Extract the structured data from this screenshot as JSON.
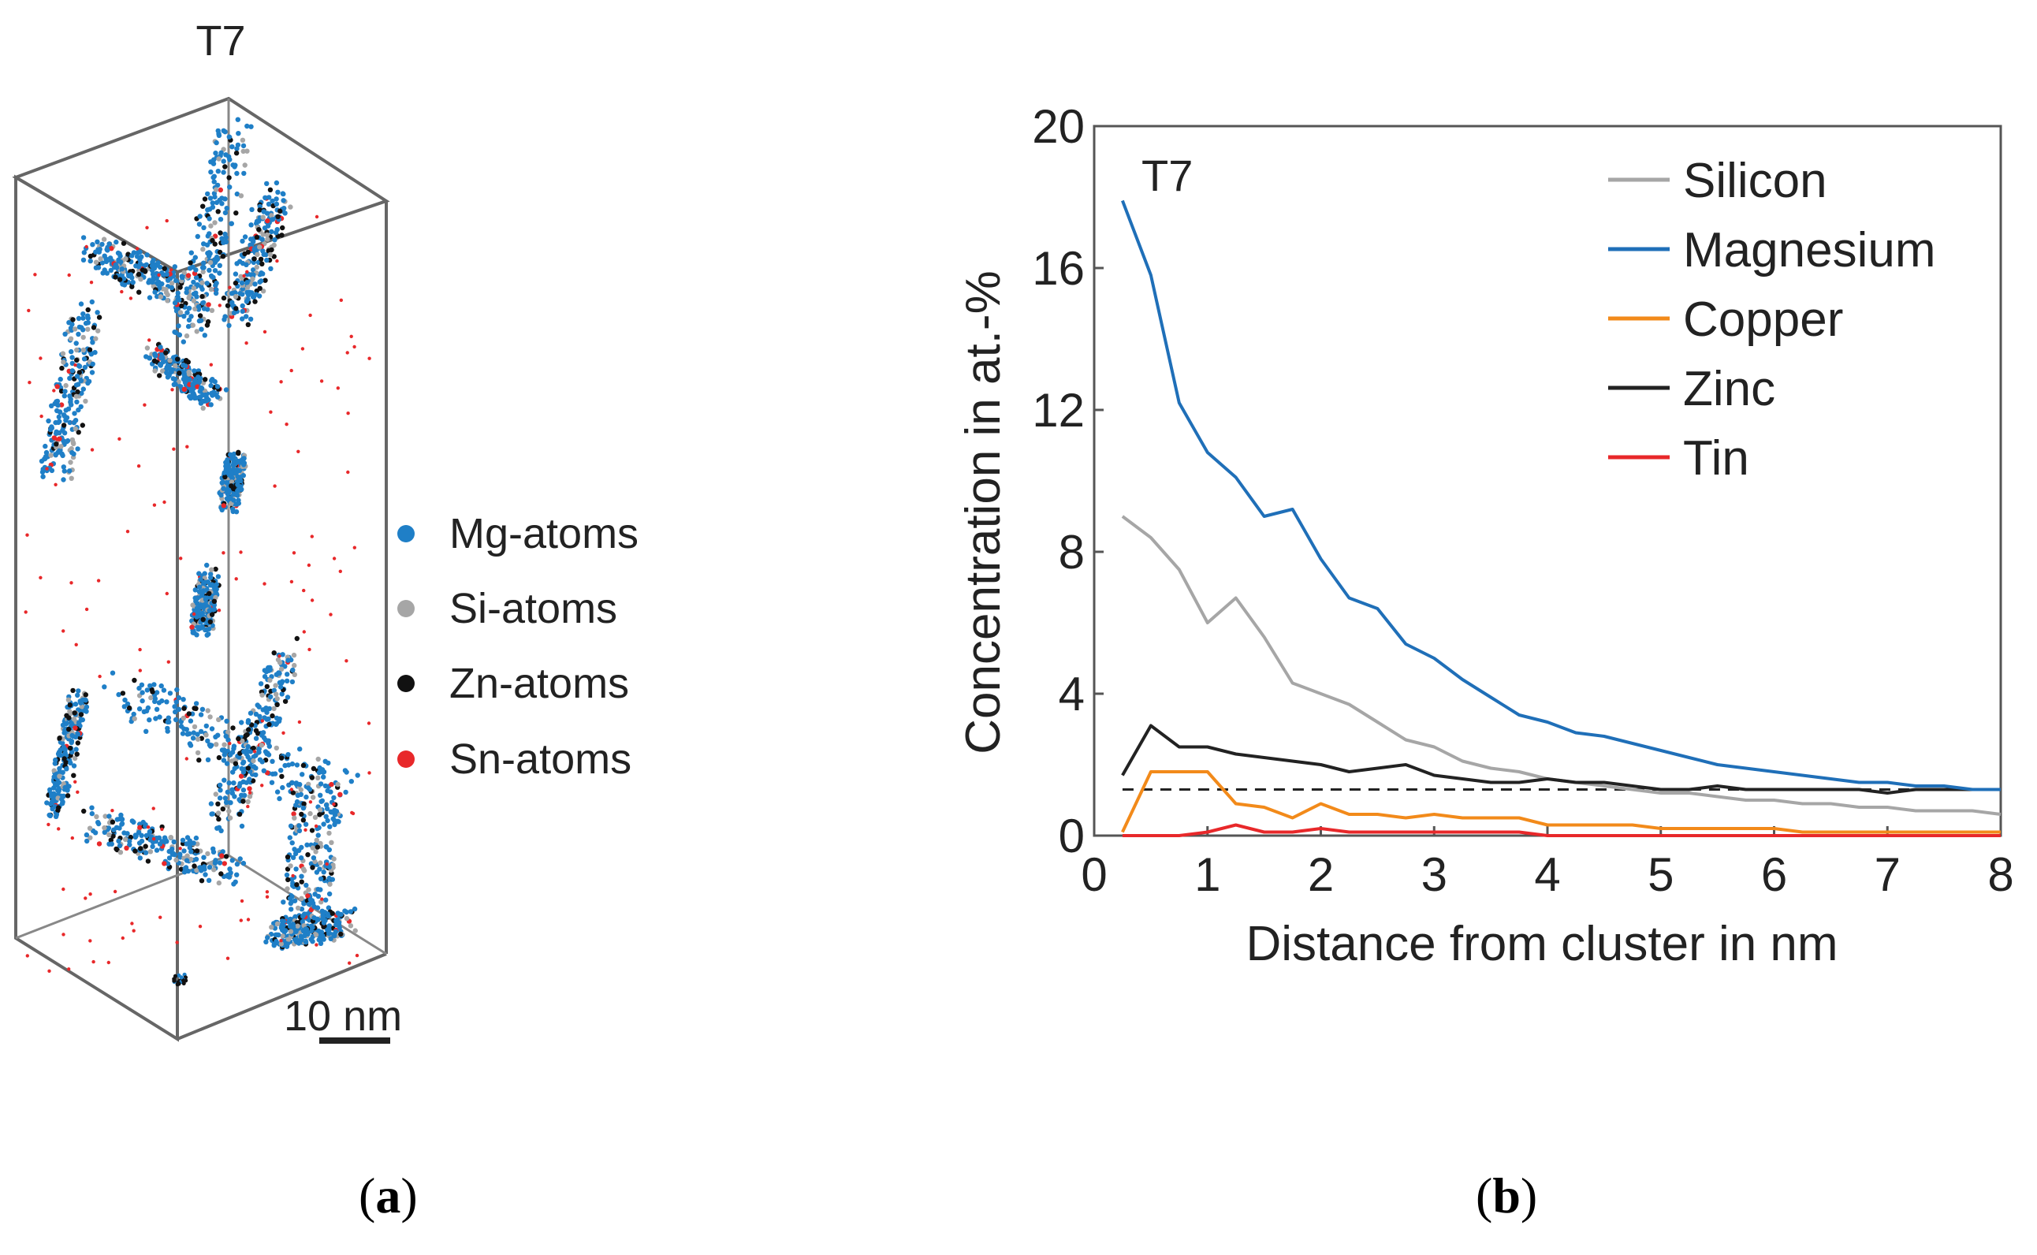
{
  "panel_a": {
    "title": "T7",
    "legend": [
      {
        "label": "Mg-atoms",
        "color": "#1f7fc7"
      },
      {
        "label": "Si-atoms",
        "color": "#a6a6a6"
      },
      {
        "label": "Zn-atoms",
        "color": "#111111"
      },
      {
        "label": "Sn-atoms",
        "color": "#e8282a"
      }
    ],
    "scale_bar": "10 nm",
    "caption_letter": "a"
  },
  "panel_b": {
    "caption_letter": "b"
  },
  "chart_data": {
    "type": "line",
    "annotation": "T7",
    "xlabel": "Distance from cluster in nm",
    "ylabel": "Concentration in at.-%",
    "xlim": [
      0,
      8
    ],
    "ylim": [
      0,
      20
    ],
    "xticks": [
      "0",
      "1",
      "2",
      "3",
      "4",
      "5",
      "6",
      "7",
      "8"
    ],
    "yticks": [
      "0",
      "4",
      "8",
      "12",
      "16",
      "20"
    ],
    "legend_position": "top-right",
    "x": [
      0.25,
      0.5,
      0.75,
      1.0,
      1.25,
      1.5,
      1.75,
      2.0,
      2.25,
      2.5,
      2.75,
      3.0,
      3.25,
      3.5,
      3.75,
      4.0,
      4.25,
      4.5,
      4.75,
      5.0,
      5.25,
      5.5,
      5.75,
      6.0,
      6.25,
      6.5,
      6.75,
      7.0,
      7.25,
      7.5,
      7.75,
      8.0
    ],
    "series": [
      {
        "name": "Silicon",
        "color": "#a6a6a6",
        "values": [
          9.0,
          8.4,
          7.5,
          6.0,
          6.7,
          5.6,
          4.3,
          4.0,
          3.7,
          3.2,
          2.7,
          2.5,
          2.1,
          1.9,
          1.8,
          1.6,
          1.5,
          1.4,
          1.3,
          1.2,
          1.2,
          1.1,
          1.0,
          1.0,
          0.9,
          0.9,
          0.8,
          0.8,
          0.7,
          0.7,
          0.7,
          0.6
        ]
      },
      {
        "name": "Magnesium",
        "color": "#1f6fb8",
        "values": [
          17.9,
          15.8,
          12.2,
          10.8,
          10.1,
          9.0,
          9.2,
          7.8,
          6.7,
          6.4,
          5.4,
          5.0,
          4.4,
          3.9,
          3.4,
          3.2,
          2.9,
          2.8,
          2.6,
          2.4,
          2.2,
          2.0,
          1.9,
          1.8,
          1.7,
          1.6,
          1.5,
          1.5,
          1.4,
          1.4,
          1.3,
          1.3
        ]
      },
      {
        "name": "Copper",
        "color": "#f28a1a",
        "values": [
          0.1,
          1.8,
          1.8,
          1.8,
          0.9,
          0.8,
          0.5,
          0.9,
          0.6,
          0.6,
          0.5,
          0.6,
          0.5,
          0.5,
          0.5,
          0.3,
          0.3,
          0.3,
          0.3,
          0.2,
          0.2,
          0.2,
          0.2,
          0.2,
          0.1,
          0.1,
          0.1,
          0.1,
          0.1,
          0.1,
          0.1,
          0.1
        ]
      },
      {
        "name": "Zinc",
        "color": "#222222",
        "values": [
          1.7,
          3.1,
          2.5,
          2.5,
          2.3,
          2.2,
          2.1,
          2.0,
          1.8,
          1.9,
          2.0,
          1.7,
          1.6,
          1.5,
          1.5,
          1.6,
          1.5,
          1.5,
          1.4,
          1.3,
          1.3,
          1.4,
          1.3,
          1.3,
          1.3,
          1.3,
          1.3,
          1.2,
          1.3,
          1.3,
          1.3,
          1.3
        ]
      },
      {
        "name": "Tin",
        "color": "#e8282a",
        "values": [
          0.0,
          0.0,
          0.0,
          0.1,
          0.3,
          0.1,
          0.1,
          0.2,
          0.1,
          0.1,
          0.1,
          0.1,
          0.1,
          0.1,
          0.1,
          0.0,
          0.0,
          0.0,
          0.0,
          0.0,
          0.0,
          0.0,
          0.0,
          0.0,
          0.0,
          0.0,
          0.0,
          0.0,
          0.0,
          0.0,
          0.0,
          0.0
        ]
      }
    ],
    "reference_line": {
      "style": "dashed",
      "color": "#222222",
      "x": [
        0.25,
        8.0
      ],
      "y": 1.3
    }
  }
}
